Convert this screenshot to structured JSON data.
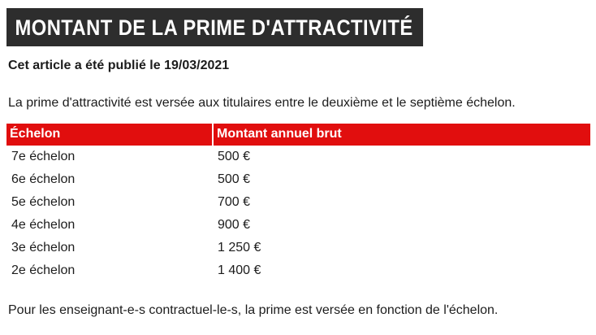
{
  "article": {
    "title": "MONTANT DE LA PRIME D'ATTRACTIVITÉ",
    "published_prefix": "Cet article a été publié le ",
    "published_date": "19/03/2021",
    "intro": "La prime d'attractivité est versée aux titulaires entre le deuxième et le septième échelon.",
    "footer_note": "Pour les enseignant-e-s contractuel-le-s, la prime est versée en fonction de l'échelon."
  },
  "table": {
    "headers": [
      "Échelon",
      "Montant annuel brut"
    ],
    "rows": [
      [
        "7e échelon",
        "500 €"
      ],
      [
        "6e échelon",
        "500 €"
      ],
      [
        "5e échelon",
        "700 €"
      ],
      [
        "4e échelon",
        "900 €"
      ],
      [
        "3e échelon",
        "1 250 €"
      ],
      [
        "2e échelon",
        "1 400 €"
      ]
    ]
  },
  "colors": {
    "banner_bg": "#2d2d2d",
    "banner_text": "#ffffff",
    "table_header_bg": "#e10e0e",
    "table_header_text": "#ffffff",
    "body_text": "#1c1c1c"
  }
}
